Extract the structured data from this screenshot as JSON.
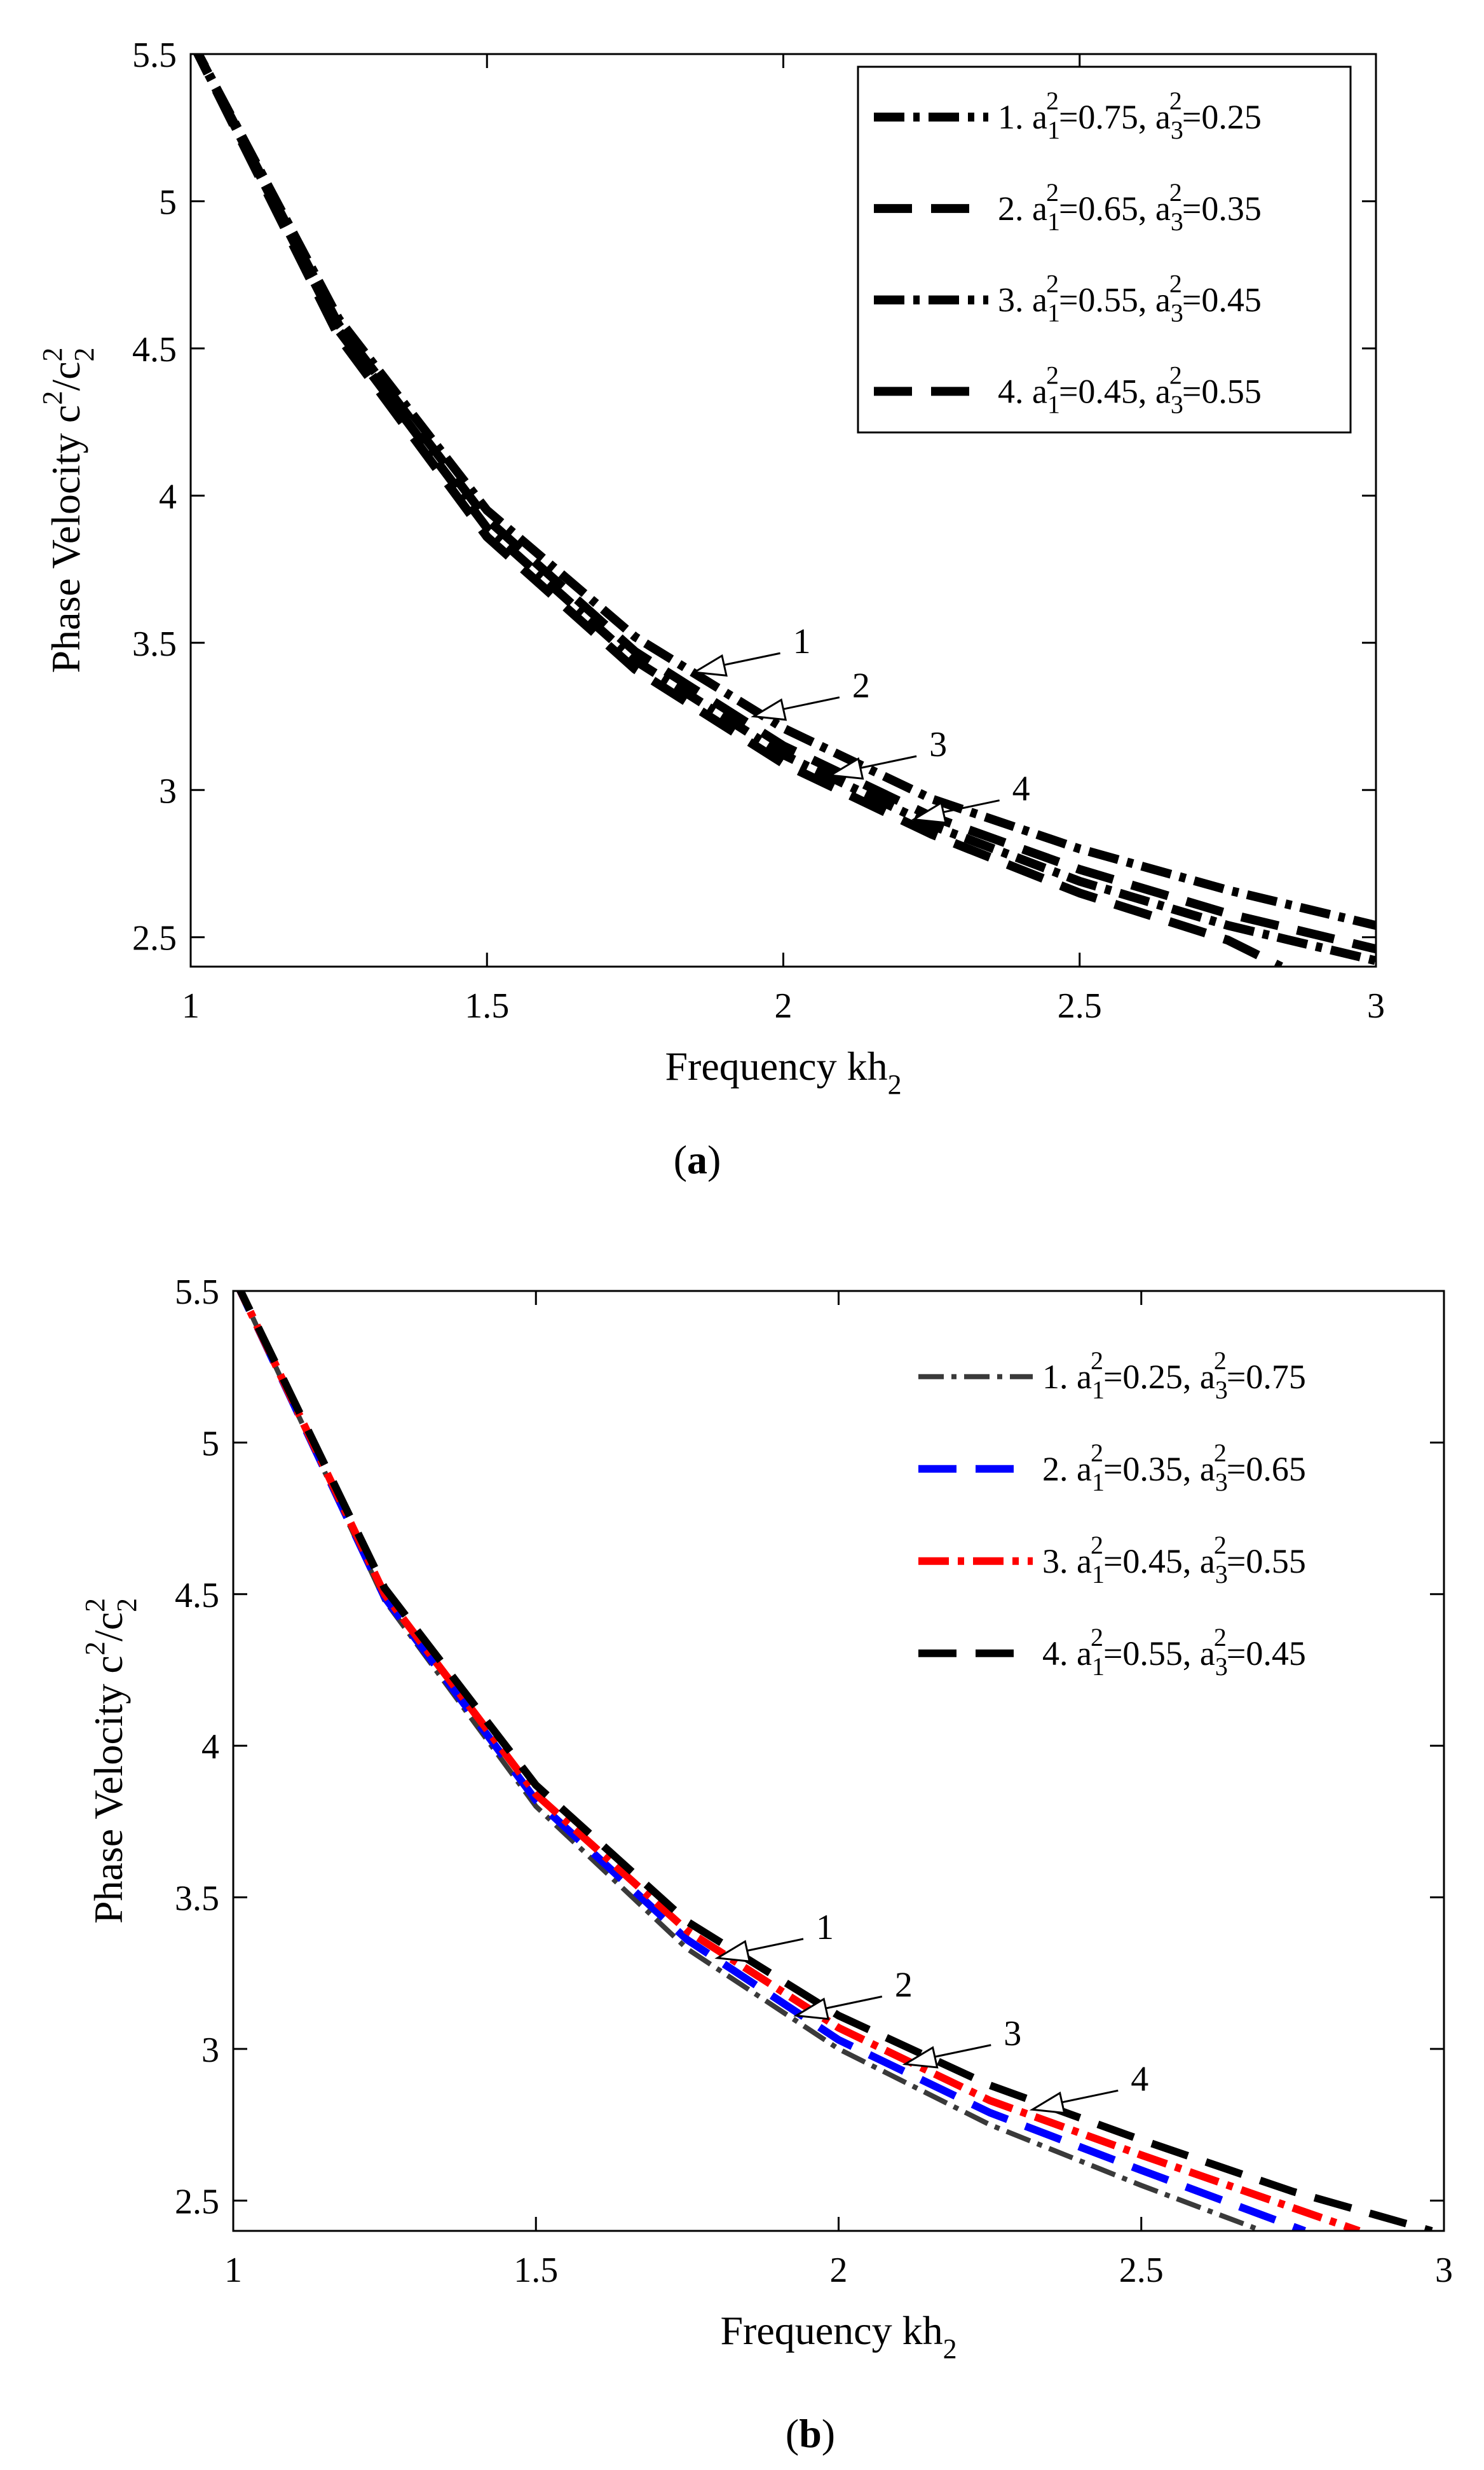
{
  "chart_data": [
    {
      "panel": "a",
      "caption": "a",
      "type": "line",
      "title": "",
      "xlabel": "Frequency kh",
      "xlabel_sub": "2",
      "ylabel": "Phase Velocity c",
      "ylabel_parts": [
        "Phase Velocity c",
        "2",
        "/c",
        "2",
        "2"
      ],
      "xlim": [
        1,
        3
      ],
      "ylim": [
        2.4,
        5.5
      ],
      "xticks": [
        1,
        1.5,
        2,
        2.5,
        3
      ],
      "xtick_labels": [
        "1",
        "1.5",
        "2",
        "2.5",
        "3"
      ],
      "yticks": [
        2.5,
        3,
        3.5,
        4,
        4.5,
        5,
        5.5
      ],
      "ytick_labels": [
        "2.5",
        "3",
        "3.5",
        "4",
        "4.5",
        "5",
        "5.5"
      ],
      "legend_position": "top-right",
      "legend_boxed": true,
      "series": [
        {
          "name": "1. a1²=0.75, a3²=0.25",
          "label_parts": [
            "1. a",
            "1",
            "2",
            "=0.75, a",
            "3",
            "2",
            "=0.25"
          ],
          "color": "#000000",
          "style": "dashdot",
          "x": [
            1.0,
            1.25,
            1.5,
            1.75,
            2.0,
            2.25,
            2.5,
            2.75,
            3.0
          ],
          "y": [
            5.55,
            4.6,
            3.95,
            3.52,
            3.21,
            2.97,
            2.8,
            2.66,
            2.54
          ]
        },
        {
          "name": "2. a1²=0.65, a3²=0.35",
          "label_parts": [
            "2. a",
            "1",
            "2",
            "=0.65, a",
            "3",
            "2",
            "=0.35"
          ],
          "color": "#000000",
          "style": "dashed",
          "x": [
            1.0,
            1.25,
            1.5,
            1.75,
            2.0,
            2.25,
            2.5,
            2.75,
            3.0
          ],
          "y": [
            5.55,
            4.58,
            3.92,
            3.47,
            3.15,
            2.91,
            2.73,
            2.58,
            2.46
          ]
        },
        {
          "name": "3. a1²=0.55, a3²=0.45",
          "label_parts": [
            "3. a",
            "1",
            "2",
            "=0.55, a",
            "3",
            "2",
            "=0.45"
          ],
          "color": "#000000",
          "style": "dashdot",
          "x": [
            1.0,
            1.25,
            1.5,
            1.75,
            2.0,
            2.25,
            2.5,
            2.75,
            3.0
          ],
          "y": [
            5.55,
            4.56,
            3.89,
            3.44,
            3.12,
            2.88,
            2.69,
            2.54,
            2.42
          ]
        },
        {
          "name": "4. a1²=0.45, a3²=0.55",
          "label_parts": [
            "4. a",
            "1",
            "2",
            "=0.45, a",
            "3",
            "2",
            "=0.55"
          ],
          "color": "#000000",
          "style": "dashed",
          "x": [
            1.0,
            1.25,
            1.5,
            1.75,
            2.0,
            2.25,
            2.5,
            2.75,
            2.84
          ],
          "y": [
            5.55,
            4.54,
            3.86,
            3.41,
            3.09,
            2.85,
            2.65,
            2.49,
            2.4
          ]
        }
      ],
      "annotations": [
        {
          "text": "1",
          "x": 1.85,
          "y": 3.4
        },
        {
          "text": "2",
          "x": 1.95,
          "y": 3.25
        },
        {
          "text": "3",
          "x": 2.08,
          "y": 3.05
        },
        {
          "text": "4",
          "x": 2.22,
          "y": 2.9
        }
      ]
    },
    {
      "panel": "b",
      "caption": "b",
      "type": "line",
      "title": "",
      "xlabel": "Frequency kh",
      "xlabel_sub": "2",
      "ylabel": "Phase Velocity c",
      "ylabel_parts": [
        "Phase Velocity c",
        "2",
        "/c",
        "2",
        "2"
      ],
      "xlim": [
        1,
        3
      ],
      "ylim": [
        2.4,
        5.5
      ],
      "xticks": [
        1,
        1.5,
        2,
        2.5,
        3
      ],
      "xtick_labels": [
        "1",
        "1.5",
        "2",
        "2.5",
        "3"
      ],
      "yticks": [
        2.5,
        3,
        3.5,
        4,
        4.5,
        5,
        5.5
      ],
      "ytick_labels": [
        "2.5",
        "3",
        "3.5",
        "4",
        "4.5",
        "5",
        "5.5"
      ],
      "legend_position": "top-right",
      "legend_boxed": false,
      "series": [
        {
          "name": "1. a1²=0.25, a3²=0.75",
          "label_parts": [
            "1. a",
            "1",
            "2",
            "=0.25, a",
            "3",
            "2",
            "=0.75"
          ],
          "color": "#3a3a3a",
          "style": "dashdot-thin",
          "x": [
            1.0,
            1.25,
            1.5,
            1.75,
            2.0,
            2.25,
            2.5,
            2.7
          ],
          "y": [
            5.55,
            4.48,
            3.8,
            3.33,
            3.0,
            2.75,
            2.55,
            2.4
          ]
        },
        {
          "name": "2. a1²=0.35, a3²=0.65",
          "label_parts": [
            "2. a",
            "1",
            "2",
            "=0.35, a",
            "3",
            "2",
            "=0.65"
          ],
          "color": "#0000ff",
          "style": "dashed",
          "x": [
            1.0,
            1.25,
            1.5,
            1.75,
            2.0,
            2.25,
            2.5,
            2.77
          ],
          "y": [
            5.55,
            4.49,
            3.82,
            3.36,
            3.03,
            2.79,
            2.6,
            2.4
          ]
        },
        {
          "name": "3. a1²=0.45, a3²=0.55",
          "label_parts": [
            "3. a",
            "1",
            "2",
            "=0.45, a",
            "3",
            "2",
            "=0.55"
          ],
          "color": "#ff0000",
          "style": "dashdot",
          "x": [
            1.0,
            1.25,
            1.5,
            1.75,
            2.0,
            2.25,
            2.5,
            2.86
          ],
          "y": [
            5.55,
            4.5,
            3.84,
            3.39,
            3.07,
            2.83,
            2.65,
            2.4
          ]
        },
        {
          "name": "4. a1²=0.55, a3²=0.45",
          "label_parts": [
            "4. a",
            "1",
            "2",
            "=0.55, a",
            "3",
            "2",
            "=0.45"
          ],
          "color": "#000000",
          "style": "dashed",
          "x": [
            1.0,
            1.25,
            1.5,
            1.75,
            2.0,
            2.25,
            2.5,
            2.75,
            2.98
          ],
          "y": [
            5.55,
            4.52,
            3.87,
            3.42,
            3.11,
            2.88,
            2.7,
            2.53,
            2.4
          ]
        }
      ],
      "annotations": [
        {
          "text": "1",
          "x": 1.8,
          "y": 3.3
        },
        {
          "text": "2",
          "x": 1.93,
          "y": 3.11
        },
        {
          "text": "3",
          "x": 2.11,
          "y": 2.95
        },
        {
          "text": "4",
          "x": 2.32,
          "y": 2.8
        }
      ]
    }
  ]
}
